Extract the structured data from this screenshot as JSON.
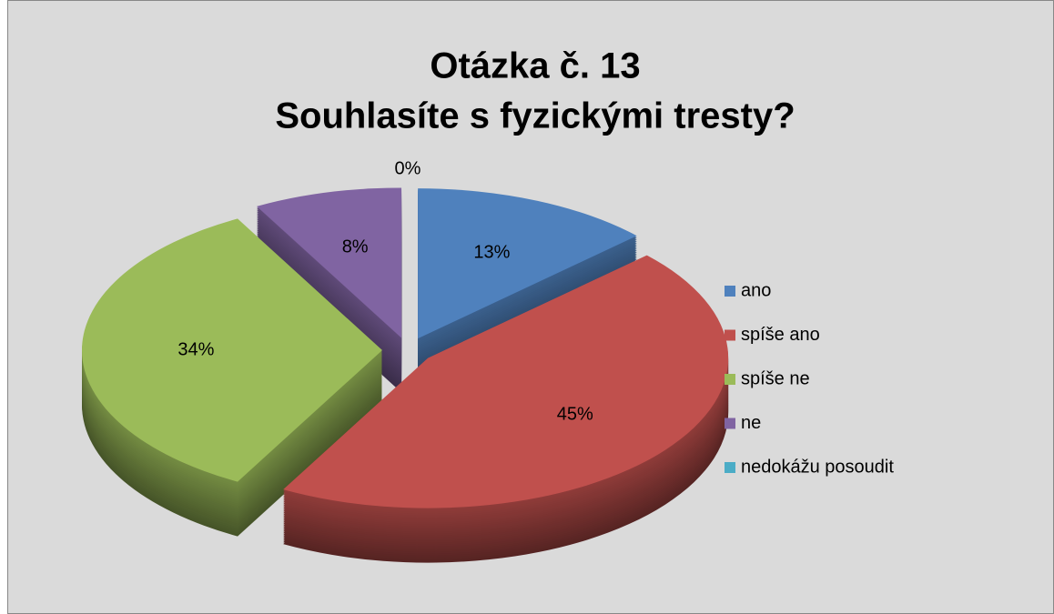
{
  "chart_data": {
    "type": "pie",
    "title": "Otázka č. 13",
    "subtitle": "Souhlasíte s fyzickými tresty?",
    "categories": [
      "ano",
      "spíše ano",
      "spíše ne",
      "ne",
      "nedokážu posoudit"
    ],
    "values": [
      13,
      45,
      34,
      8,
      0
    ],
    "value_labels": [
      "13%",
      "45%",
      "34%",
      "8%",
      "0%"
    ],
    "colors": [
      "#4f81bd",
      "#c0504d",
      "#9bbb59",
      "#8064a2",
      "#4bacc6"
    ],
    "legend": "right"
  }
}
